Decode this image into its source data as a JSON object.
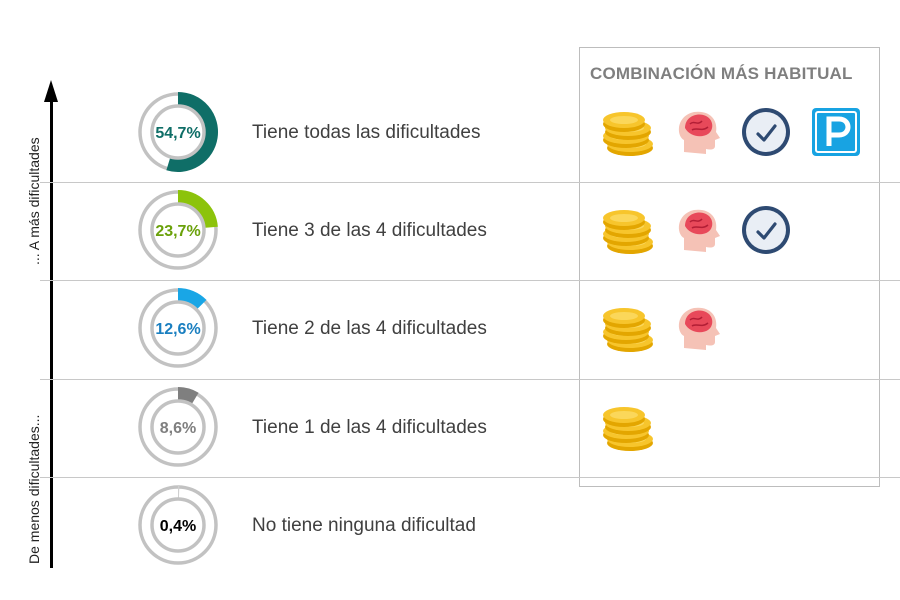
{
  "axis": {
    "top_label": "... A más dificultades",
    "bottom_label": "De menos dificultades..."
  },
  "combo_header": "COMBINACIÓN  MÁS HABITUAL",
  "chart_data": {
    "type": "donut",
    "categories": [
      "Tiene todas las dificultades",
      "Tiene 3 de las 4 dificultades",
      "Tiene 2 de las 4 dificultades",
      "Tiene 1 de las 4 dificultades",
      "No tiene ninguna dificultad"
    ],
    "values": [
      54.7,
      23.7,
      12.6,
      8.6,
      0.4
    ],
    "value_labels": [
      "54,7%",
      "23,7%",
      "12,6%",
      "8,6%",
      "0,4%"
    ],
    "colors": [
      "#0f6e67",
      "#8cc30b",
      "#19a6e6",
      "#7f7f7f",
      "#d0d0d0"
    ],
    "label_colors": [
      "#0f6e67",
      "#6aa10a",
      "#1a7fc0",
      "#7f7f7f",
      "#000000"
    ],
    "most_common_combination": [
      [
        "coins-icon",
        "brain-icon",
        "clock-icon",
        "parking-icon"
      ],
      [
        "coins-icon",
        "brain-icon",
        "clock-icon"
      ],
      [
        "coins-icon",
        "brain-icon"
      ],
      [
        "coins-icon"
      ],
      []
    ]
  }
}
